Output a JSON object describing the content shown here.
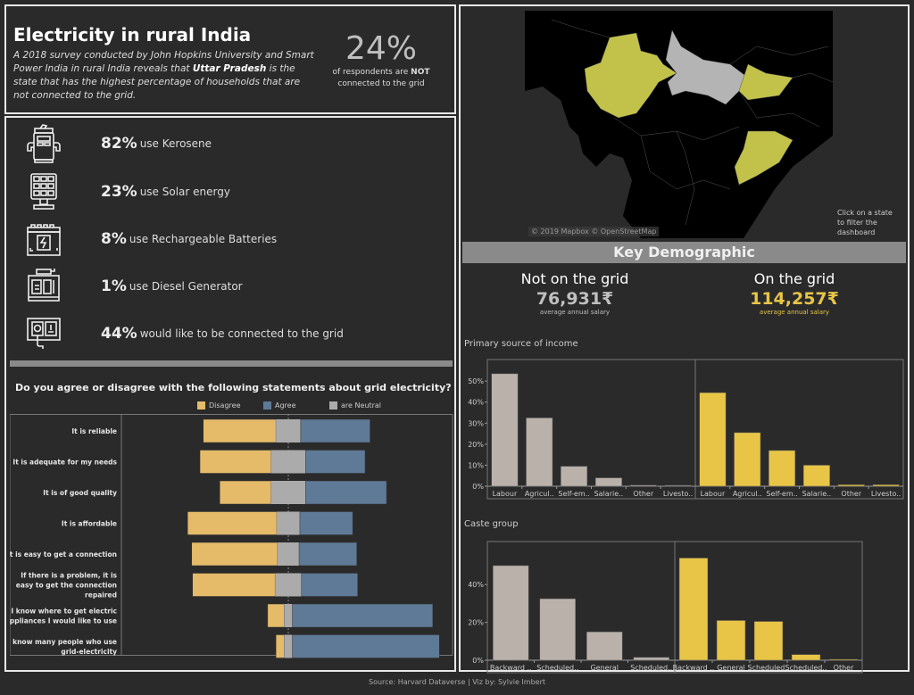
{
  "header": {
    "title": "Electricity in rural India",
    "description_parts": [
      "A 2018 survey conducted by John Hopkins University and Smart Power India in rural India reveals that ",
      "Uttar Pradesh",
      " is the state that has the highest percentage of households that are not connected to the grid."
    ],
    "kpi_value": "24%",
    "kpi_sub1": "of respondents are ",
    "kpi_sub_bold": "NOT",
    "kpi_sub2": "connected to the grid"
  },
  "stats": [
    {
      "icon": "kerosene-pump-icon",
      "pct": "82%",
      "label": "use Kerosene"
    },
    {
      "icon": "solar-panel-icon",
      "pct": "23%",
      "label": "use Solar energy"
    },
    {
      "icon": "battery-icon",
      "pct": "8%",
      "label": "use Rechargeable Batteries"
    },
    {
      "icon": "diesel-generator-icon",
      "pct": "1%",
      "label": "use Diesel Generator"
    },
    {
      "icon": "power-socket-icon",
      "pct": "44%",
      "label": "would like to be connected to the grid"
    }
  ],
  "survey": {
    "title": "Do you agree or disagree with the following statements about grid electricity?",
    "legend": [
      {
        "label": "Disagree",
        "color": "#e5bb69"
      },
      {
        "label": "Agree",
        "color": "#5f7a96"
      },
      {
        "label": "are Neutral",
        "color": "#ababab"
      }
    ]
  },
  "map": {
    "credit": "© 2019 Mapbox © OpenStreetMap",
    "hint": "Click on a state to filter the dashboard",
    "highlight_color": "#c2c24a",
    "selected_color": "#b4b4b4"
  },
  "demographic": {
    "title": "Key Demographic",
    "not_grid": {
      "heading": "Not on the grid",
      "value": "76,931₹",
      "sub": "average annual salary",
      "color": "#bfbfbf"
    },
    "on_grid": {
      "heading": "On the grid",
      "value": "114,257₹",
      "sub": "average annual salary",
      "color": "#e8c547"
    },
    "income_title": "Primary source of income",
    "caste_title": "Caste group"
  },
  "footer": "Source: Harvard Dataverse  |  Viz by: Sylvie Imbert",
  "chart_data": [
    {
      "type": "bar",
      "title": "Do you agree or disagree with the following statements about grid electricity?",
      "orientation": "horizontal-diverging-stacked",
      "categories": [
        "It is reliable",
        "It is adequate for my needs",
        "It is of good quality",
        "It is affordable",
        "It is easy to get a connection",
        "If there is a problem, it is easy to get the connection repaired",
        "I know where to get electric appliances I would like to use",
        "I know many people who use grid-electricity"
      ],
      "series": [
        {
          "name": "Disagree",
          "color": "#e5bb69",
          "values": [
            44,
            43,
            31,
            54,
            52,
            50,
            10,
            5
          ]
        },
        {
          "name": "are Neutral",
          "color": "#ababab",
          "values": [
            15,
            21,
            21,
            14,
            13,
            16,
            5,
            5
          ]
        },
        {
          "name": "Agree",
          "color": "#5f7a96",
          "values": [
            42,
            36,
            49,
            32,
            35,
            34,
            85,
            89
          ]
        }
      ],
      "legend": "top"
    },
    {
      "type": "bar",
      "title": "Primary source of income",
      "ylabel": "",
      "xlabel": "",
      "yticks": [
        "0%",
        "10%",
        "20%",
        "30%",
        "40%",
        "50%"
      ],
      "ylim": [
        0,
        56
      ],
      "panels": [
        {
          "name": "Not on the grid",
          "color": "#bab1ab",
          "categories": [
            "Labour",
            "Agricul..",
            "Self-em..",
            "Salarie..",
            "Other",
            "Livesto.."
          ],
          "values": [
            53.5,
            32.5,
            9.5,
            4,
            0.5,
            0.2
          ]
        },
        {
          "name": "On the grid",
          "color": "#e8c547",
          "categories": [
            "Labour",
            "Agricul..",
            "Self-em..",
            "Salarie..",
            "Other",
            "Livesto.."
          ],
          "values": [
            44.5,
            25.5,
            17,
            10,
            0.7,
            0.7
          ]
        }
      ]
    },
    {
      "type": "bar",
      "title": "Caste group",
      "yticks": [
        "0%",
        "20%",
        "40%"
      ],
      "ylim": [
        0,
        58
      ],
      "panels": [
        {
          "name": "Not on the grid",
          "color": "#bab1ab",
          "categories": [
            "Backward ..",
            "Scheduled..",
            "General",
            "Scheduled.."
          ],
          "values": [
            50,
            32.5,
            15,
            1.5
          ]
        },
        {
          "name": "On the grid",
          "color": "#e8c547",
          "categories": [
            "Backward ..",
            "General",
            "Scheduled..",
            "Scheduled..",
            "Other"
          ],
          "values": [
            54,
            21,
            20.5,
            3,
            0.3
          ]
        }
      ]
    }
  ]
}
